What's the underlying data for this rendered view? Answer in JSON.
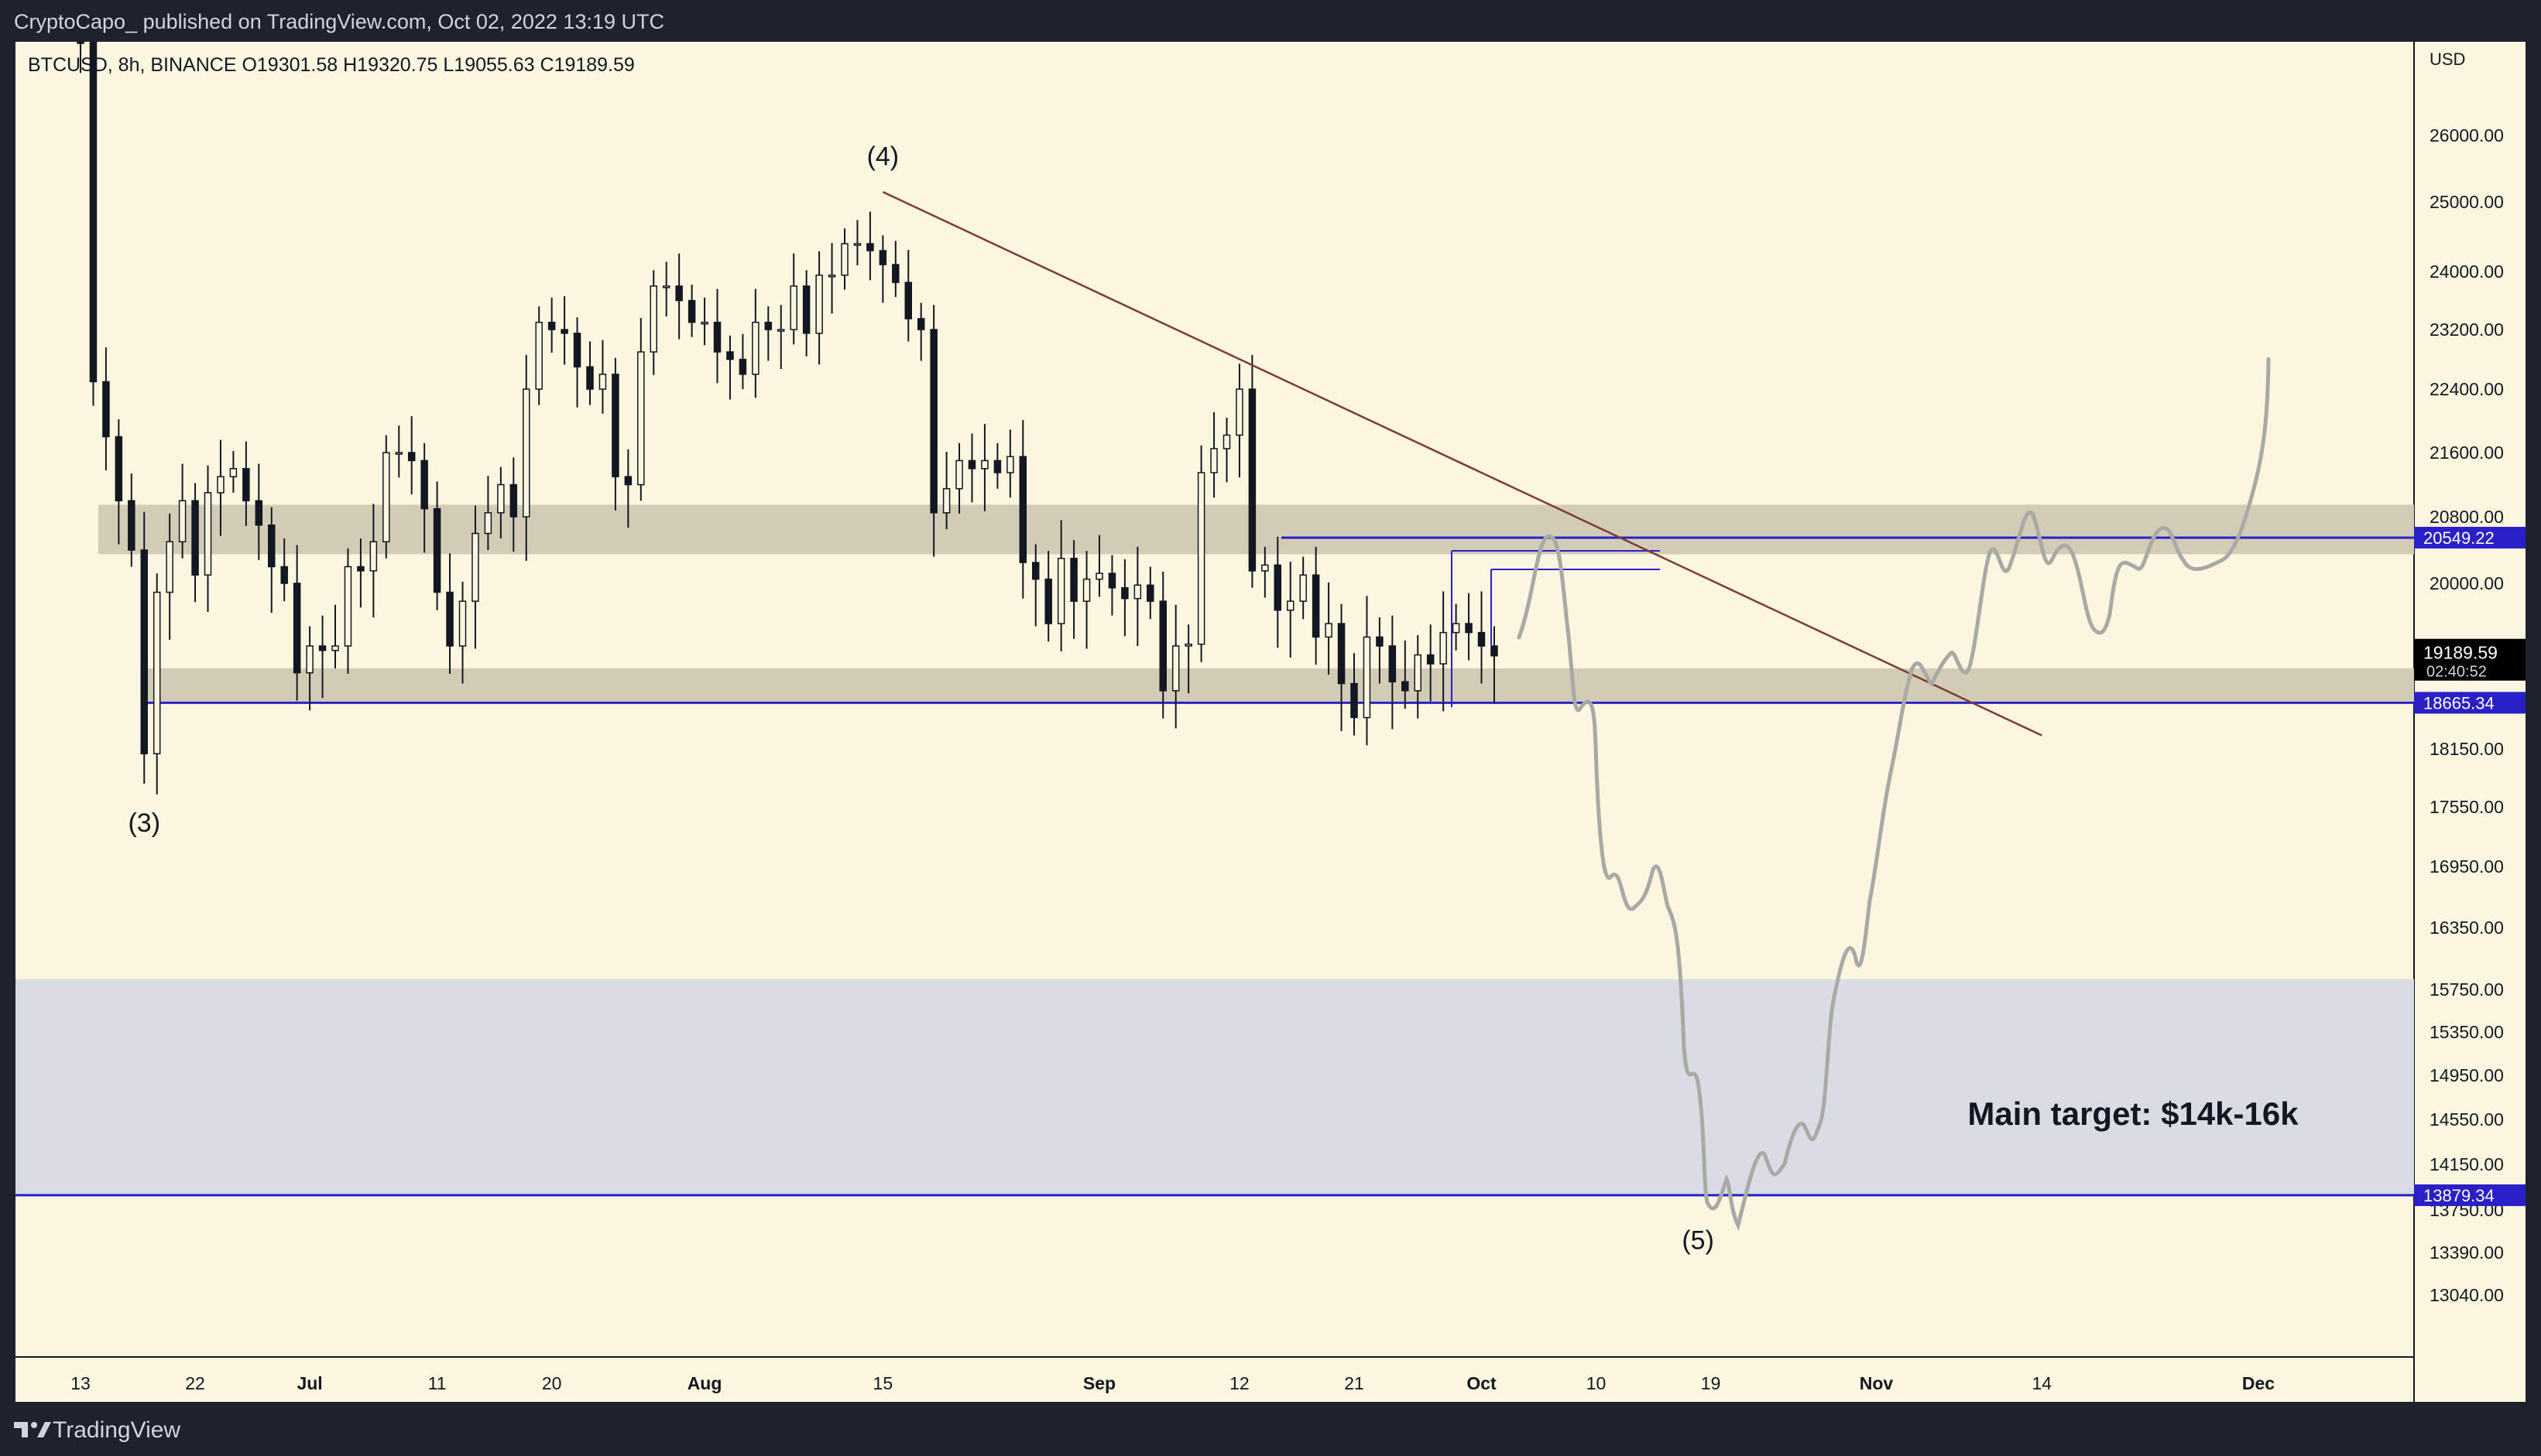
{
  "header": {
    "published_text": "CryptoCapo_ published on TradingView.com, Oct 02, 2022 13:19 UTC"
  },
  "symbol": {
    "info": "BTCUSD, 8h, BINANCE  O19301.58  H19320.75  L19055.63  C19189.59"
  },
  "footer": {
    "brand": "TradingView"
  },
  "colors": {
    "chart_bg": "#fbf6e0",
    "candles": "#131722",
    "zone_gray": "#d2ccb7",
    "target_zone": "#d9dde3",
    "level_line": "#2a20c8",
    "trendline": "#7d3a36",
    "projection": "#a9a9a6",
    "price_tag_bg": "#2a20c8",
    "current_tag_bg": "#000000"
  },
  "chart_data": {
    "type": "candlestick",
    "title": "BTCUSD, 8h, BINANCE",
    "currency_label": "USD",
    "ohlc_last": {
      "open": 19301.58,
      "high": 19320.75,
      "low": 19055.63,
      "close": 19189.59
    },
    "y_ticks": [
      "26000.00",
      "25000.00",
      "24000.00",
      "23200.00",
      "22400.00",
      "21600.00",
      "20800.00",
      "20000.00",
      "18150.00",
      "17550.00",
      "16950.00",
      "16350.00",
      "15750.00",
      "15350.00",
      "14950.00",
      "14550.00",
      "14150.00",
      "13750.00",
      "13390.00",
      "13040.00"
    ],
    "x_ticks": [
      "13",
      "22",
      "Jul",
      "11",
      "20",
      "Aug",
      "15",
      "Sep",
      "12",
      "21",
      "Oct",
      "10",
      "19",
      "Nov",
      "14",
      "Dec"
    ],
    "x_tick_dates": [
      "2022-06-13",
      "2022-06-22",
      "2022-07-01",
      "2022-07-11",
      "2022-07-20",
      "2022-08-01",
      "2022-08-15",
      "2022-09-01",
      "2022-09-12",
      "2022-09-21",
      "2022-10-01",
      "2022-10-10",
      "2022-10-19",
      "2022-11-01",
      "2022-11-14",
      "2022-12-01"
    ],
    "price_levels": [
      {
        "label": "20549.22",
        "value": 20549.22
      },
      {
        "label": "18665.34",
        "value": 18665.34
      },
      {
        "label": "13879.34",
        "value": 13879.34
      }
    ],
    "current_price": {
      "label": "19189.59",
      "countdown": "02:40:52"
    },
    "zones": [
      {
        "name": "resistance-zone",
        "from": 20350,
        "to": 20950
      },
      {
        "name": "support-zone",
        "from": 18680,
        "to": 19050
      },
      {
        "name": "target-zone",
        "from": 13879.34,
        "to": 15850
      }
    ],
    "wave_labels": [
      {
        "label": "(3)",
        "date": "2022-06-18",
        "value": 17300
      },
      {
        "label": "(4)",
        "date": "2022-08-15",
        "value": 25550
      },
      {
        "label": "(5)",
        "date": "2022-10-18",
        "value": 13420
      }
    ],
    "trendline": {
      "start": [
        "2022-08-15",
        25150
      ],
      "end": [
        "2022-11-14",
        18300
      ]
    },
    "annotation": "Main target: $14k-16k",
    "candles_closes": [
      {
        "d": "2022-06-13",
        "c": 26600
      },
      {
        "d": "2022-06-14",
        "c": 22500
      },
      {
        "d": "2022-06-15",
        "c": 21800
      },
      {
        "d": "2022-06-16",
        "c": 21000
      },
      {
        "d": "2022-06-17",
        "c": 20400
      },
      {
        "d": "2022-06-18",
        "c": 18100
      },
      {
        "d": "2022-06-19",
        "c": 19900
      },
      {
        "d": "2022-06-20",
        "c": 20500
      },
      {
        "d": "2022-06-21",
        "c": 21000
      },
      {
        "d": "2022-06-22",
        "c": 20100
      },
      {
        "d": "2022-06-23",
        "c": 21100
      },
      {
        "d": "2022-06-24",
        "c": 21300
      },
      {
        "d": "2022-06-25",
        "c": 21400
      },
      {
        "d": "2022-06-26",
        "c": 21000
      },
      {
        "d": "2022-06-27",
        "c": 20700
      },
      {
        "d": "2022-06-28",
        "c": 20200
      },
      {
        "d": "2022-06-29",
        "c": 20000
      },
      {
        "d": "2022-06-30",
        "c": 19000
      },
      {
        "d": "2022-07-01",
        "c": 19300
      },
      {
        "d": "2022-07-02",
        "c": 19250
      },
      {
        "d": "2022-07-03",
        "c": 19300
      },
      {
        "d": "2022-07-04",
        "c": 20200
      },
      {
        "d": "2022-07-05",
        "c": 20150
      },
      {
        "d": "2022-07-06",
        "c": 20500
      },
      {
        "d": "2022-07-07",
        "c": 21600
      },
      {
        "d": "2022-07-08",
        "c": 21600
      },
      {
        "d": "2022-07-09",
        "c": 21500
      },
      {
        "d": "2022-07-10",
        "c": 20900
      },
      {
        "d": "2022-07-11",
        "c": 19900
      },
      {
        "d": "2022-07-12",
        "c": 19300
      },
      {
        "d": "2022-07-13",
        "c": 19800
      },
      {
        "d": "2022-07-14",
        "c": 20600
      },
      {
        "d": "2022-07-15",
        "c": 20850
      },
      {
        "d": "2022-07-16",
        "c": 21200
      },
      {
        "d": "2022-07-17",
        "c": 20800
      },
      {
        "d": "2022-07-18",
        "c": 22400
      },
      {
        "d": "2022-07-19",
        "c": 23300
      },
      {
        "d": "2022-07-20",
        "c": 23200
      },
      {
        "d": "2022-07-21",
        "c": 23150
      },
      {
        "d": "2022-07-22",
        "c": 22700
      },
      {
        "d": "2022-07-23",
        "c": 22400
      },
      {
        "d": "2022-07-24",
        "c": 22600
      },
      {
        "d": "2022-07-25",
        "c": 21300
      },
      {
        "d": "2022-07-26",
        "c": 21200
      },
      {
        "d": "2022-07-27",
        "c": 22900
      },
      {
        "d": "2022-07-28",
        "c": 23800
      },
      {
        "d": "2022-07-29",
        "c": 23800
      },
      {
        "d": "2022-07-30",
        "c": 23600
      },
      {
        "d": "2022-07-31",
        "c": 23300
      },
      {
        "d": "2022-08-01",
        "c": 23300
      },
      {
        "d": "2022-08-02",
        "c": 22900
      },
      {
        "d": "2022-08-03",
        "c": 22800
      },
      {
        "d": "2022-08-04",
        "c": 22600
      },
      {
        "d": "2022-08-05",
        "c": 23300
      },
      {
        "d": "2022-08-06",
        "c": 23200
      },
      {
        "d": "2022-08-07",
        "c": 23200
      },
      {
        "d": "2022-08-08",
        "c": 23800
      },
      {
        "d": "2022-08-09",
        "c": 23150
      },
      {
        "d": "2022-08-10",
        "c": 23950
      },
      {
        "d": "2022-08-11",
        "c": 23950
      },
      {
        "d": "2022-08-12",
        "c": 24400
      },
      {
        "d": "2022-08-13",
        "c": 24400
      },
      {
        "d": "2022-08-14",
        "c": 24300
      },
      {
        "d": "2022-08-15",
        "c": 24100
      },
      {
        "d": "2022-08-16",
        "c": 23850
      },
      {
        "d": "2022-08-17",
        "c": 23350
      },
      {
        "d": "2022-08-18",
        "c": 23200
      },
      {
        "d": "2022-08-19",
        "c": 20850
      },
      {
        "d": "2022-08-20",
        "c": 21150
      },
      {
        "d": "2022-08-21",
        "c": 21500
      },
      {
        "d": "2022-08-22",
        "c": 21400
      },
      {
        "d": "2022-08-23",
        "c": 21500
      },
      {
        "d": "2022-08-24",
        "c": 21350
      },
      {
        "d": "2022-08-25",
        "c": 21550
      },
      {
        "d": "2022-08-26",
        "c": 20250
      },
      {
        "d": "2022-08-27",
        "c": 20050
      },
      {
        "d": "2022-08-28",
        "c": 19550
      },
      {
        "d": "2022-08-29",
        "c": 20300
      },
      {
        "d": "2022-08-30",
        "c": 19800
      },
      {
        "d": "2022-08-31",
        "c": 20050
      },
      {
        "d": "2022-09-01",
        "c": 20120
      },
      {
        "d": "2022-09-02",
        "c": 19950
      },
      {
        "d": "2022-09-03",
        "c": 19830
      },
      {
        "d": "2022-09-04",
        "c": 19980
      },
      {
        "d": "2022-09-05",
        "c": 19800
      },
      {
        "d": "2022-09-06",
        "c": 18800
      },
      {
        "d": "2022-09-07",
        "c": 19300
      },
      {
        "d": "2022-09-08",
        "c": 19320
      },
      {
        "d": "2022-09-09",
        "c": 21350
      },
      {
        "d": "2022-09-10",
        "c": 21650
      },
      {
        "d": "2022-09-11",
        "c": 21820
      },
      {
        "d": "2022-09-12",
        "c": 22400
      },
      {
        "d": "2022-09-13",
        "c": 20150
      },
      {
        "d": "2022-09-14",
        "c": 20220
      },
      {
        "d": "2022-09-15",
        "c": 19700
      },
      {
        "d": "2022-09-16",
        "c": 19800
      },
      {
        "d": "2022-09-17",
        "c": 20100
      },
      {
        "d": "2022-09-18",
        "c": 19400
      },
      {
        "d": "2022-09-19",
        "c": 19550
      },
      {
        "d": "2022-09-20",
        "c": 18880
      },
      {
        "d": "2022-09-21",
        "c": 18500
      },
      {
        "d": "2022-09-22",
        "c": 19400
      },
      {
        "d": "2022-09-23",
        "c": 19300
      },
      {
        "d": "2022-09-24",
        "c": 18900
      },
      {
        "d": "2022-09-25",
        "c": 18800
      },
      {
        "d": "2022-09-26",
        "c": 19200
      },
      {
        "d": "2022-09-27",
        "c": 19100
      },
      {
        "d": "2022-09-28",
        "c": 19450
      },
      {
        "d": "2022-09-29",
        "c": 19550
      },
      {
        "d": "2022-09-30",
        "c": 19450
      },
      {
        "d": "2022-10-01",
        "c": 19300
      },
      {
        "d": "2022-10-02",
        "c": 19190
      }
    ]
  }
}
